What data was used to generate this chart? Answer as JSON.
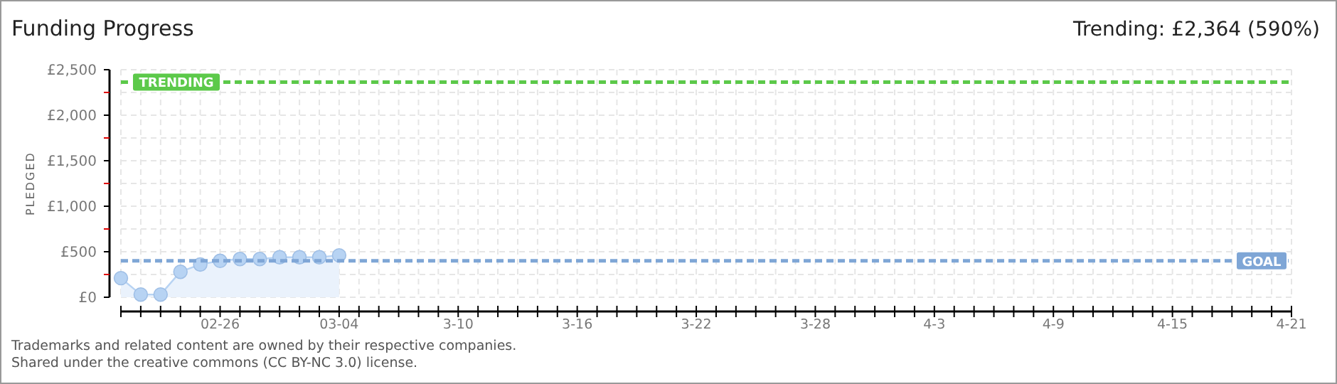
{
  "chart_data": {
    "type": "area",
    "title": "Funding Progress",
    "ylabel": "PLEDGED",
    "annotations": [
      "Trending: £2,364 (590%)",
      "Trademarks and related content are owned by their respective companies.",
      "Shared under the creative commons (CC BY-NC 3.0) license."
    ],
    "x": [
      "--02-21",
      "--02-22",
      "--02-23",
      "--02-24",
      "--02-25",
      "--02-26",
      "--02-27",
      "--02-28",
      "--03-01",
      "--03-02",
      "--03-03",
      "--03-04"
    ],
    "series": [
      {
        "color": "#b7d3f3",
        "values": [
          210,
          30,
          30,
          280,
          360,
          400,
          420,
          420,
          440,
          440,
          440,
          460
        ]
      }
    ],
    "marker": "circle",
    "ylim": [
      0,
      2500
    ],
    "yticks": [
      {
        "value": 0,
        "label": "£0"
      },
      {
        "value": 250,
        "label": null
      },
      {
        "value": 500,
        "label": "£500"
      },
      {
        "value": 750,
        "label": null
      },
      {
        "value": 1000,
        "label": "£1,000"
      },
      {
        "value": 1250,
        "label": null
      },
      {
        "value": 1500,
        "label": "£1,500"
      },
      {
        "value": 1750,
        "label": null
      },
      {
        "value": 2000,
        "label": "£2,000"
      },
      {
        "value": 2250,
        "label": null
      },
      {
        "value": 2500,
        "label": "£2,500"
      }
    ],
    "xlim": [
      "--02-21",
      "--04-21"
    ],
    "xticks": [
      {
        "value": "--02-21",
        "label": null
      },
      {
        "value": "--02-22",
        "label": null
      },
      {
        "value": "--02-23",
        "label": null
      },
      {
        "value": "--02-24",
        "label": null
      },
      {
        "value": "--02-25",
        "label": null
      },
      {
        "value": "--02-26",
        "label": "02-26"
      },
      {
        "value": "--02-27",
        "label": null
      },
      {
        "value": "--02-28",
        "label": null
      },
      {
        "value": "--03-01",
        "label": null
      },
      {
        "value": "--03-02",
        "label": null
      },
      {
        "value": "--03-03",
        "label": null
      },
      {
        "value": "--03-04",
        "label": "03-04"
      },
      {
        "value": "--03-05",
        "label": null
      },
      {
        "value": "--03-06",
        "label": null
      },
      {
        "value": "--03-07",
        "label": null
      },
      {
        "value": "--03-08",
        "label": null
      },
      {
        "value": "--03-09",
        "label": null
      },
      {
        "value": "--03-10",
        "label": "3-10"
      },
      {
        "value": "--03-11",
        "label": null
      },
      {
        "value": "--03-12",
        "label": null
      },
      {
        "value": "--03-13",
        "label": null
      },
      {
        "value": "--03-14",
        "label": null
      },
      {
        "value": "--03-15",
        "label": null
      },
      {
        "value": "--03-16",
        "label": "3-16"
      },
      {
        "value": "--03-17",
        "label": null
      },
      {
        "value": "--03-18",
        "label": null
      },
      {
        "value": "--03-19",
        "label": null
      },
      {
        "value": "--03-20",
        "label": null
      },
      {
        "value": "--03-21",
        "label": null
      },
      {
        "value": "--03-22",
        "label": "3-22"
      },
      {
        "value": "--03-23",
        "label": null
      },
      {
        "value": "--03-24",
        "label": null
      },
      {
        "value": "--03-25",
        "label": null
      },
      {
        "value": "--03-26",
        "label": null
      },
      {
        "value": "--03-27",
        "label": null
      },
      {
        "value": "--03-28",
        "label": "3-28"
      },
      {
        "value": "--03-29",
        "label": null
      },
      {
        "value": "--03-30",
        "label": null
      },
      {
        "value": "--03-31",
        "label": null
      },
      {
        "value": "--04-01",
        "label": null
      },
      {
        "value": "--04-02",
        "label": null
      },
      {
        "value": "--04-03",
        "label": "4-3"
      },
      {
        "value": "--04-04",
        "label": null
      },
      {
        "value": "--04-05",
        "label": null
      },
      {
        "value": "--04-06",
        "label": null
      },
      {
        "value": "--04-07",
        "label": null
      },
      {
        "value": "--04-08",
        "label": null
      },
      {
        "value": "--04-09",
        "label": "4-9"
      },
      {
        "value": "--04-10",
        "label": null
      },
      {
        "value": "--04-11",
        "label": null
      },
      {
        "value": "--04-12",
        "label": null
      },
      {
        "value": "--04-13",
        "label": null
      },
      {
        "value": "--04-14",
        "label": null
      },
      {
        "value": "--04-15",
        "label": "4-15"
      },
      {
        "value": "--04-16",
        "label": null
      },
      {
        "value": "--04-17",
        "label": null
      },
      {
        "value": "--04-18",
        "label": null
      },
      {
        "value": "--04-19",
        "label": null
      },
      {
        "value": "--04-20",
        "label": null
      },
      {
        "value": "--04-21",
        "label": "4-21"
      }
    ],
    "grid": true,
    "ref_lines": [
      {
        "axis": "y",
        "value": 2364,
        "label": "TRENDING",
        "color": "#5cc94a",
        "line_style": "dashed"
      },
      {
        "axis": "y",
        "value": 400,
        "label": "GOAL",
        "color": "#7fa6d6",
        "line_style": "dashed"
      }
    ]
  }
}
